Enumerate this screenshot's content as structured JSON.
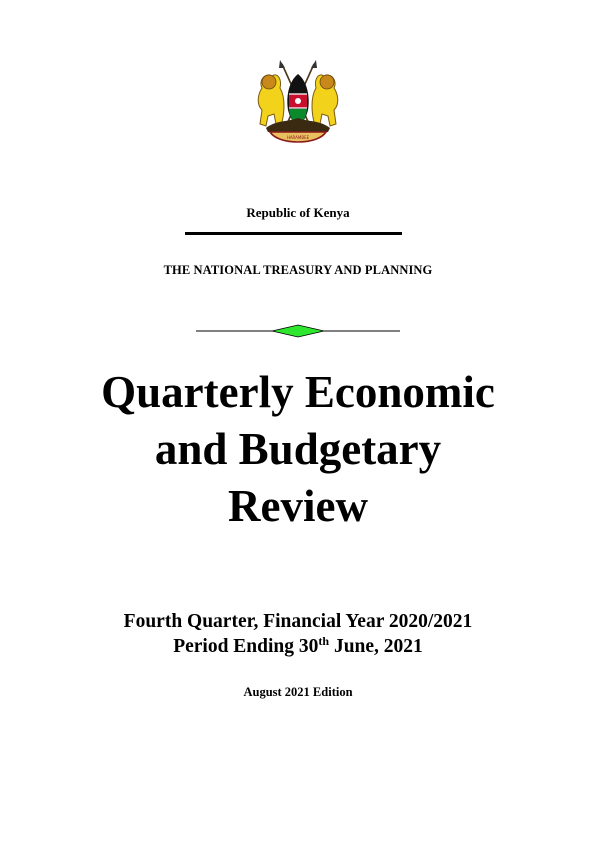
{
  "header": {
    "emblem": "coat-of-arms-of-kenya",
    "emblem_motto": "HARAMBEE",
    "republic": "Republic of Kenya",
    "ministry": "THE NATIONAL TREASURY AND PLANNING"
  },
  "title": {
    "line1": "Quarterly Economic",
    "line2": "and Budgetary",
    "line3": "Review"
  },
  "subtitle": {
    "line1": "Fourth Quarter, Financial Year 2020/2021",
    "line2_prefix": "Period Ending 30",
    "line2_sup": "th",
    "line2_suffix": " June, 2021"
  },
  "edition": "August 2021 Edition",
  "colors": {
    "divider_diamond": "#2fe62f",
    "text": "#000000"
  }
}
